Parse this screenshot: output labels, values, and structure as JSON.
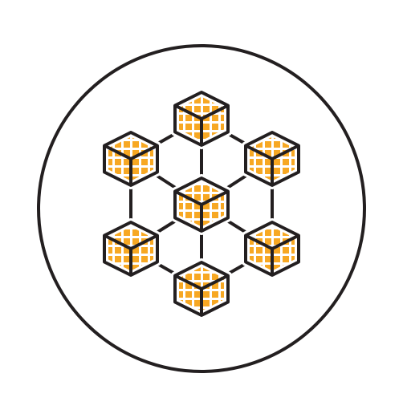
{
  "icon": {
    "name": "blockchain-network-icon",
    "stroke_color": "#231f20",
    "fill_color": "#ffffff",
    "accent_color": "#f7a823",
    "block_count": 7
  }
}
